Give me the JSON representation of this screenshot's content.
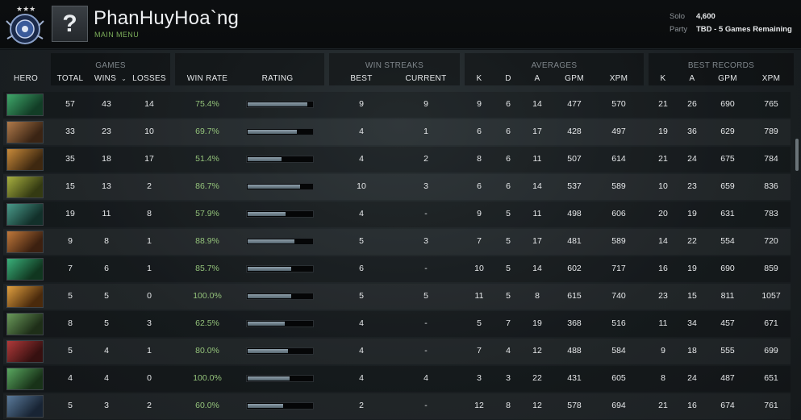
{
  "header": {
    "player_name": "PhanHuyHoa`ng",
    "main_menu": "MAIN MENU",
    "avatar_glyph": "?",
    "solo_label": "Solo",
    "solo_value": "4,600",
    "party_label": "Party",
    "party_value": "TBD - 5 Games Remaining"
  },
  "groups": {
    "games": "GAMES",
    "win_streaks": "WIN STREAKS",
    "averages": "AVERAGES",
    "best_records": "BEST RECORDS"
  },
  "columns": {
    "hero": "HERO",
    "total": "TOTAL",
    "wins": "WINS",
    "losses": "LOSSES",
    "win_rate": "WIN RATE",
    "rating": "RATING",
    "best": "BEST",
    "current": "CURRENT",
    "avg_k": "K",
    "avg_d": "D",
    "avg_a": "A",
    "avg_gpm": "GPM",
    "avg_xpm": "XPM",
    "rec_k": "K",
    "rec_a": "A",
    "rec_gpm": "GPM",
    "rec_xpm": "XPM"
  },
  "sort_icon": "chevron-down-icon",
  "rows": [
    {
      "c1": "#3fa86a",
      "c2": "#123d26",
      "total": "57",
      "wins": "43",
      "losses": "14",
      "win_rate": "75.4%",
      "rating": 0.92,
      "best": "9",
      "current": "9",
      "k": "9",
      "d": "6",
      "a": "14",
      "gpm": "477",
      "xpm": "570",
      "rk": "21",
      "ra": "26",
      "rgpm": "690",
      "rxpm": "765"
    },
    {
      "c1": "#b07a4a",
      "c2": "#3a2414",
      "total": "33",
      "wins": "23",
      "losses": "10",
      "win_rate": "69.7%",
      "rating": 0.76,
      "best": "4",
      "current": "1",
      "k": "6",
      "d": "6",
      "a": "17",
      "gpm": "428",
      "xpm": "497",
      "rk": "19",
      "ra": "36",
      "rgpm": "629",
      "rxpm": "789"
    },
    {
      "c1": "#c88a3a",
      "c2": "#3e2810",
      "total": "35",
      "wins": "18",
      "losses": "17",
      "win_rate": "51.4%",
      "rating": 0.53,
      "best": "4",
      "current": "2",
      "k": "8",
      "d": "6",
      "a": "11",
      "gpm": "507",
      "xpm": "614",
      "rk": "21",
      "ra": "24",
      "rgpm": "675",
      "rxpm": "784"
    },
    {
      "c1": "#a8b040",
      "c2": "#343a12",
      "total": "15",
      "wins": "13",
      "losses": "2",
      "win_rate": "86.7%",
      "rating": 0.81,
      "best": "10",
      "current": "3",
      "k": "6",
      "d": "6",
      "a": "14",
      "gpm": "537",
      "xpm": "589",
      "rk": "10",
      "ra": "23",
      "rgpm": "659",
      "rxpm": "836"
    },
    {
      "c1": "#4a9a8a",
      "c2": "#12302a",
      "total": "19",
      "wins": "11",
      "losses": "8",
      "win_rate": "57.9%",
      "rating": 0.59,
      "best": "4",
      "current": "-",
      "k": "9",
      "d": "5",
      "a": "11",
      "gpm": "498",
      "xpm": "606",
      "rk": "20",
      "ra": "19",
      "rgpm": "631",
      "rxpm": "783"
    },
    {
      "c1": "#c0783a",
      "c2": "#3c2010",
      "total": "9",
      "wins": "8",
      "losses": "1",
      "win_rate": "88.9%",
      "rating": 0.72,
      "best": "5",
      "current": "3",
      "k": "7",
      "d": "5",
      "a": "17",
      "gpm": "481",
      "xpm": "589",
      "rk": "14",
      "ra": "22",
      "rgpm": "554",
      "rxpm": "720"
    },
    {
      "c1": "#3ab07a",
      "c2": "#10361f",
      "total": "7",
      "wins": "6",
      "losses": "1",
      "win_rate": "85.7%",
      "rating": 0.67,
      "best": "6",
      "current": "-",
      "k": "10",
      "d": "5",
      "a": "14",
      "gpm": "602",
      "xpm": "717",
      "rk": "16",
      "ra": "19",
      "rgpm": "690",
      "rxpm": "859"
    },
    {
      "c1": "#e0a040",
      "c2": "#4a2a0c",
      "total": "5",
      "wins": "5",
      "losses": "0",
      "win_rate": "100.0%",
      "rating": 0.68,
      "best": "5",
      "current": "5",
      "k": "11",
      "d": "5",
      "a": "8",
      "gpm": "615",
      "xpm": "740",
      "rk": "23",
      "ra": "15",
      "rgpm": "811",
      "rxpm": "1057"
    },
    {
      "c1": "#6a9a5a",
      "c2": "#1e2e18",
      "total": "8",
      "wins": "5",
      "losses": "3",
      "win_rate": "62.5%",
      "rating": 0.57,
      "best": "4",
      "current": "-",
      "k": "5",
      "d": "7",
      "a": "19",
      "gpm": "368",
      "xpm": "516",
      "rk": "11",
      "ra": "34",
      "rgpm": "457",
      "rxpm": "671"
    },
    {
      "c1": "#b03a3a",
      "c2": "#361010",
      "total": "5",
      "wins": "4",
      "losses": "1",
      "win_rate": "80.0%",
      "rating": 0.62,
      "best": "4",
      "current": "-",
      "k": "7",
      "d": "4",
      "a": "12",
      "gpm": "488",
      "xpm": "584",
      "rk": "9",
      "ra": "18",
      "rgpm": "555",
      "rxpm": "699"
    },
    {
      "c1": "#5aa860",
      "c2": "#183218",
      "total": "4",
      "wins": "4",
      "losses": "0",
      "win_rate": "100.0%",
      "rating": 0.65,
      "best": "4",
      "current": "4",
      "k": "3",
      "d": "3",
      "a": "22",
      "gpm": "431",
      "xpm": "605",
      "rk": "8",
      "ra": "24",
      "rgpm": "487",
      "rxpm": "651"
    },
    {
      "c1": "#5a7a9a",
      "c2": "#182434",
      "total": "5",
      "wins": "3",
      "losses": "2",
      "win_rate": "60.0%",
      "rating": 0.55,
      "best": "2",
      "current": "-",
      "k": "12",
      "d": "8",
      "a": "12",
      "gpm": "578",
      "xpm": "694",
      "rk": "21",
      "ra": "16",
      "rgpm": "674",
      "rxpm": "761"
    }
  ]
}
